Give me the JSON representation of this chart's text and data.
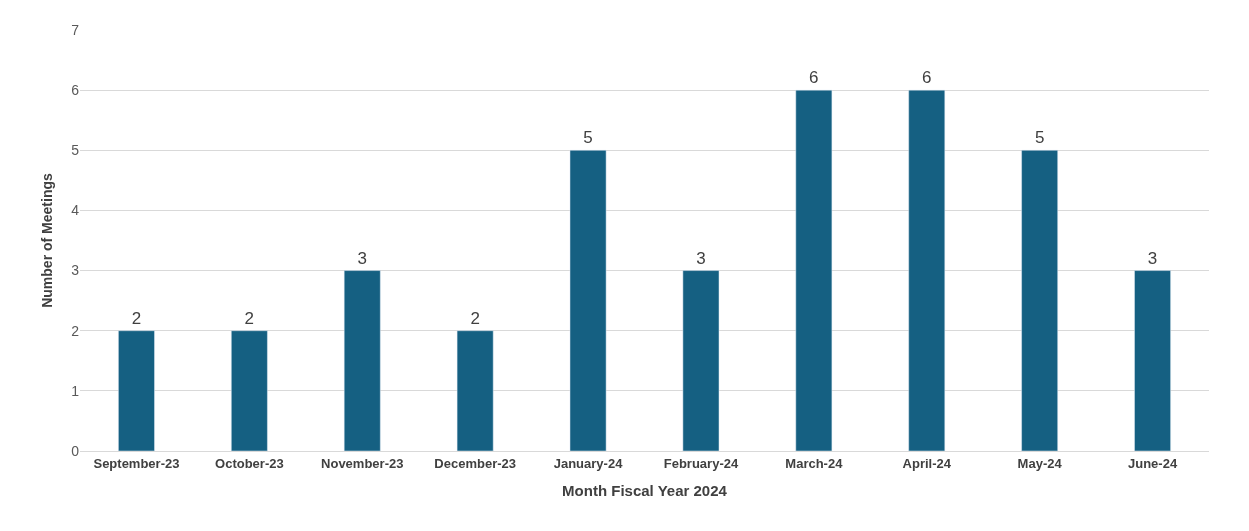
{
  "chart_data": {
    "type": "bar",
    "xlabel": "Month Fiscal Year 2024",
    "ylabel": "Number of Meetings",
    "categories": [
      "September-23",
      "October-23",
      "November-23",
      "December-23",
      "January-24",
      "February-24",
      "March-24",
      "April-24",
      "May-24",
      "June-24"
    ],
    "values": [
      2,
      2,
      3,
      2,
      5,
      3,
      6,
      6,
      5,
      3
    ],
    "color": "#156082",
    "ylim": [
      0,
      7
    ],
    "yticks": [
      0,
      1,
      2,
      3,
      4,
      5,
      6,
      7
    ],
    "grid": "y",
    "data_labels": true
  }
}
